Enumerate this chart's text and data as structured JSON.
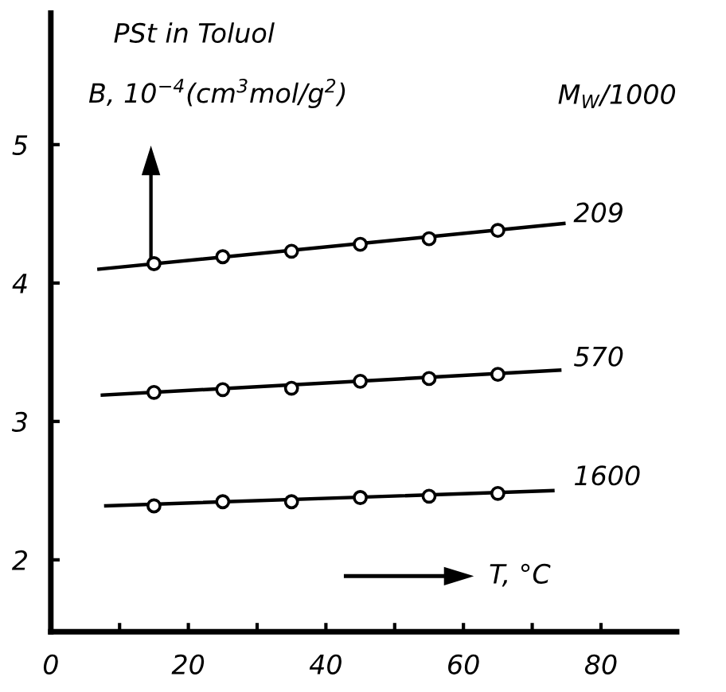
{
  "chart_data": {
    "type": "scatter",
    "title": "PSt in Toluol",
    "xlabel": "T, °C",
    "ylabel": "B, 10$^{−4}$(cm$^{3}$mol/g$^{2}$)",
    "legend_title": "M$_{W}$/1000",
    "xlim": [
      0,
      91
    ],
    "ylim": [
      1.48,
      5.95
    ],
    "xticks": [
      0,
      {
        "value": 10,
        "label": null
      },
      20,
      {
        "value": 30,
        "label": null
      },
      40,
      {
        "value": 50,
        "label": null
      },
      60,
      {
        "value": 70,
        "label": null
      },
      80
    ],
    "yticks": [
      2,
      3,
      4,
      5
    ],
    "grid": false,
    "marker": "circle",
    "series": [
      {
        "type": "line",
        "marker": "none",
        "color": "#000000",
        "x": [
          7,
          74.6
        ],
        "values": [
          4.1,
          4.43
        ]
      },
      {
        "name": "209",
        "color": "#000000",
        "x": [
          15,
          25,
          35,
          45,
          55,
          65
        ],
        "values": [
          4.14,
          4.19,
          4.23,
          4.28,
          4.32,
          4.38
        ]
      },
      {
        "type": "line",
        "marker": "none",
        "color": "#000000",
        "x": [
          7.5,
          74
        ],
        "values": [
          3.19,
          3.37
        ]
      },
      {
        "name": "570",
        "color": "#000000",
        "x": [
          15,
          25,
          35,
          45,
          55,
          65
        ],
        "values": [
          3.21,
          3.23,
          3.24,
          3.29,
          3.31,
          3.34
        ]
      },
      {
        "type": "line",
        "marker": "none",
        "color": "#000000",
        "x": [
          8,
          73
        ],
        "values": [
          2.39,
          2.5
        ]
      },
      {
        "name": "1600",
        "color": "#000000",
        "x": [
          15,
          25,
          35,
          45,
          55,
          65
        ],
        "values": [
          2.39,
          2.42,
          2.42,
          2.45,
          2.46,
          2.48
        ]
      }
    ]
  }
}
